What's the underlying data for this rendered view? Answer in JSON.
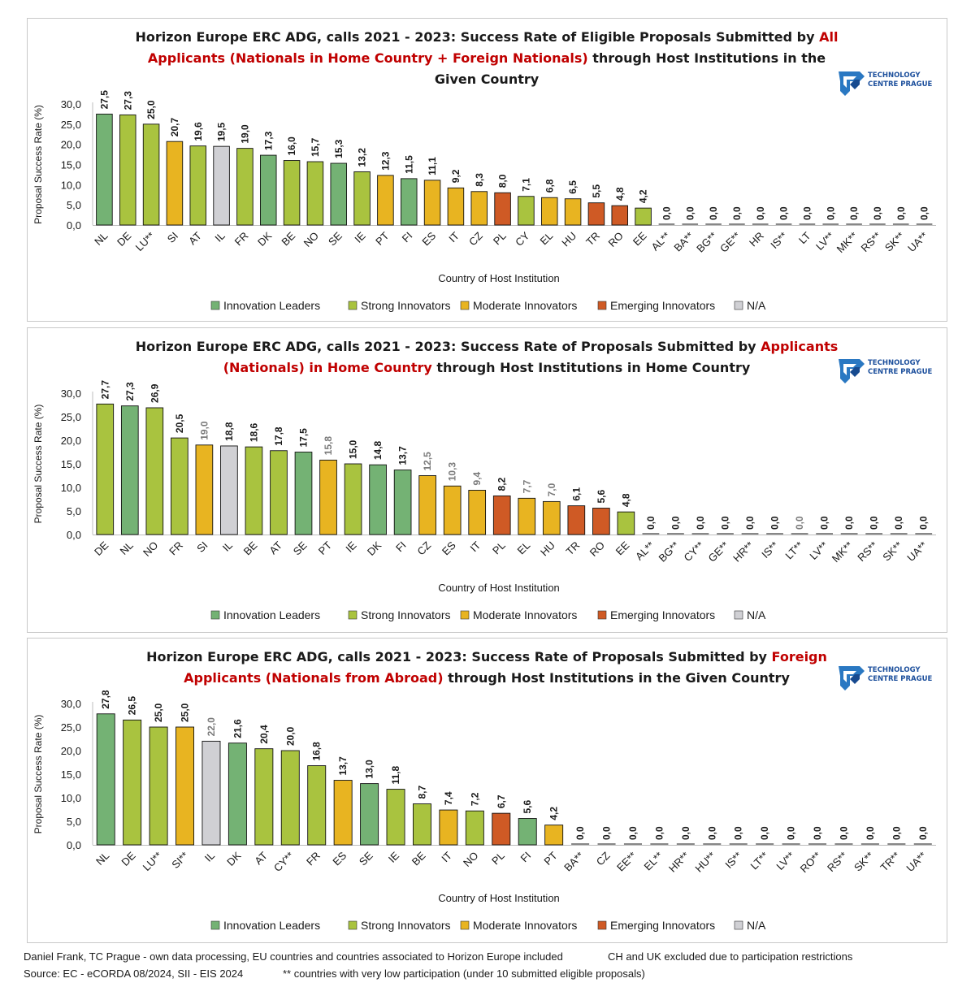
{
  "colors": {
    "Innovation Leaders": "#74b274",
    "Strong Innovators": "#a9c33f",
    "Moderate Innovators": "#e8b421",
    "Emerging Innovators": "#cf5a25",
    "N/A": "#d0d0d4"
  },
  "legend": [
    "Innovation Leaders",
    "Strong Innovators",
    "Moderate Innovators",
    "Emerging Innovators",
    "N/A"
  ],
  "logo": {
    "line1": "TECHNOLOGY",
    "line2": "CENTRE PRAGUE"
  },
  "chart_data": [
    {
      "type": "bar",
      "title": {
        "a": "Horizon Europe ERC ADG, calls 2021 - 2023: Success Rate of Eligible Proposals Submitted by ",
        "b": "All Applicants (Nationals in Home Country + Foreign Nationals)",
        "c": " through Host Institutions in the Given Country"
      },
      "xlabel": "Country of Host Institution",
      "ylabel": "Proposal Success Rate (%)",
      "ylim": [
        0,
        30
      ],
      "yticks": [
        "0,0",
        "5,0",
        "10,0",
        "15,0",
        "20,0",
        "25,0",
        "30,0"
      ],
      "categories": [
        "NL",
        "DE",
        "LU**",
        "SI",
        "AT",
        "IL",
        "FR",
        "DK",
        "BE",
        "NO",
        "SE",
        "IE",
        "PT",
        "FI",
        "ES",
        "IT",
        "CZ",
        "PL",
        "CY",
        "EL",
        "HU",
        "TR",
        "RO",
        "EE",
        "AL**",
        "BA**",
        "BG**",
        "GE**",
        "HR",
        "IS**",
        "LT",
        "LV**",
        "MK**",
        "RS**",
        "SK**",
        "UA**"
      ],
      "values": [
        27.5,
        27.3,
        25.0,
        20.7,
        19.6,
        19.5,
        19.0,
        17.3,
        16.0,
        15.7,
        15.3,
        13.2,
        12.3,
        11.5,
        11.1,
        9.2,
        8.3,
        8.0,
        7.1,
        6.8,
        6.5,
        5.5,
        4.8,
        4.2,
        0,
        0,
        0,
        0,
        0,
        0,
        0,
        0,
        0,
        0,
        0,
        0
      ],
      "labels": [
        "27,5",
        "27,3",
        "25,0",
        "20,7",
        "19,6",
        "19,5",
        "19,0",
        "17,3",
        "16,0",
        "15,7",
        "15,3",
        "13,2",
        "12,3",
        "11,5",
        "11,1",
        "9,2",
        "8,3",
        "8,0",
        "7,1",
        "6,8",
        "6,5",
        "5,5",
        "4,8",
        "4,2",
        "0,0",
        "0,0",
        "0,0",
        "0,0",
        "0,0",
        "0,0",
        "0,0",
        "0,0",
        "0,0",
        "0,0",
        "0,0",
        "0,0"
      ],
      "groups": [
        "Innovation Leaders",
        "Strong Innovators",
        "Strong Innovators",
        "Moderate Innovators",
        "Strong Innovators",
        "N/A",
        "Strong Innovators",
        "Innovation Leaders",
        "Strong Innovators",
        "Strong Innovators",
        "Innovation Leaders",
        "Strong Innovators",
        "Moderate Innovators",
        "Innovation Leaders",
        "Moderate Innovators",
        "Moderate Innovators",
        "Moderate Innovators",
        "Emerging Innovators",
        "Strong Innovators",
        "Moderate Innovators",
        "Moderate Innovators",
        "Emerging Innovators",
        "Emerging Innovators",
        "Strong Innovators",
        "N/A",
        "N/A",
        "Emerging Innovators",
        "N/A",
        "Moderate Innovators",
        "Innovation Leaders",
        "Moderate Innovators",
        "Emerging Innovators",
        "N/A",
        "N/A",
        "Emerging Innovators",
        "N/A"
      ]
    },
    {
      "type": "bar",
      "title": {
        "a": "Horizon Europe ERC ADG, calls 2021 - 2023: Success Rate of Proposals Submitted by ",
        "b": "Applicants (Nationals) in Home Country",
        "c": " through Host Institutions in Home Country"
      },
      "xlabel": "Country of Host Institution",
      "ylabel": "Proposal Success Rate (%)",
      "ylim": [
        0,
        30
      ],
      "yticks": [
        "0,0",
        "5,0",
        "10,0",
        "15,0",
        "20,0",
        "25,0",
        "30,0"
      ],
      "categories": [
        "DE",
        "NL",
        "NO",
        "FR",
        "SI",
        "IL",
        "BE",
        "AT",
        "SE",
        "PT",
        "IE",
        "DK",
        "FI",
        "CZ",
        "ES",
        "IT",
        "PL",
        "EL",
        "HU",
        "TR",
        "RO",
        "EE",
        "AL**",
        "BG**",
        "CY**",
        "GE**",
        "HR**",
        "IS**",
        "LT**",
        "LV**",
        "MK**",
        "RS**",
        "SK**",
        "UA**"
      ],
      "values": [
        27.7,
        27.3,
        26.9,
        20.5,
        19.0,
        18.8,
        18.6,
        17.8,
        17.5,
        15.8,
        15.0,
        14.8,
        13.7,
        12.5,
        10.3,
        9.4,
        8.2,
        7.7,
        7.0,
        6.1,
        5.6,
        4.8,
        0,
        0,
        0,
        0,
        0,
        0,
        0,
        0,
        0,
        0,
        0,
        0
      ],
      "labels": [
        "27,7",
        "27,3",
        "26,9",
        "20,5",
        "19,0",
        "18,8",
        "18,6",
        "17,8",
        "17,5",
        "15,8",
        "15,0",
        "14,8",
        "13,7",
        "12,5",
        "10,3",
        "9,4",
        "8,2",
        "7,7",
        "7,0",
        "6,1",
        "5,6",
        "4,8",
        "0,0",
        "0,0",
        "0,0",
        "0,0",
        "0,0",
        "0,0",
        "0,0",
        "0,0",
        "0,0",
        "0,0",
        "0,0",
        "0,0"
      ],
      "label_gray": [
        4,
        9,
        13,
        14,
        15,
        17,
        18,
        28
      ],
      "groups": [
        "Strong Innovators",
        "Innovation Leaders",
        "Strong Innovators",
        "Strong Innovators",
        "Moderate Innovators",
        "N/A",
        "Strong Innovators",
        "Strong Innovators",
        "Innovation Leaders",
        "Moderate Innovators",
        "Strong Innovators",
        "Innovation Leaders",
        "Innovation Leaders",
        "Moderate Innovators",
        "Moderate Innovators",
        "Moderate Innovators",
        "Emerging Innovators",
        "Moderate Innovators",
        "Moderate Innovators",
        "Emerging Innovators",
        "Emerging Innovators",
        "Strong Innovators",
        "N/A",
        "Emerging Innovators",
        "Strong Innovators",
        "N/A",
        "Moderate Innovators",
        "Innovation Leaders",
        "Moderate Innovators",
        "Emerging Innovators",
        "N/A",
        "N/A",
        "Emerging Innovators",
        "N/A"
      ]
    },
    {
      "type": "bar",
      "title": {
        "a": "Horizon Europe ERC ADG, calls 2021 - 2023: Success Rate of Proposals Submitted by ",
        "b": "Foreign Applicants (Nationals from Abroad)",
        "c": " through Host Institutions in the Given Country"
      },
      "xlabel": "Country of Host Institution",
      "ylabel": "Proposal Success Rate (%)",
      "ylim": [
        0,
        30
      ],
      "yticks": [
        "0,0",
        "5,0",
        "10,0",
        "15,0",
        "20,0",
        "25,0",
        "30,0"
      ],
      "categories": [
        "NL",
        "DE",
        "LU**",
        "SI**",
        "IL",
        "DK",
        "AT",
        "CY**",
        "FR",
        "ES",
        "SE",
        "IE",
        "BE",
        "IT",
        "NO",
        "PL",
        "FI",
        "PT",
        "BA**",
        "CZ",
        "EE**",
        "EL**",
        "HR**",
        "HU**",
        "IS**",
        "LT**",
        "LV**",
        "RO**",
        "RS**",
        "SK**",
        "TR**",
        "UA**"
      ],
      "values": [
        27.8,
        26.5,
        25.0,
        25.0,
        22.0,
        21.6,
        20.4,
        20.0,
        16.8,
        13.7,
        13.0,
        11.8,
        8.7,
        7.4,
        7.2,
        6.7,
        5.6,
        4.2,
        0,
        0,
        0,
        0,
        0,
        0,
        0,
        0,
        0,
        0,
        0,
        0,
        0,
        0
      ],
      "labels": [
        "27,8",
        "26,5",
        "25,0",
        "25,0",
        "22,0",
        "21,6",
        "20,4",
        "20,0",
        "16,8",
        "13,7",
        "13,0",
        "11,8",
        "8,7",
        "7,4",
        "7,2",
        "6,7",
        "5,6",
        "4,2",
        "0,0",
        "0,0",
        "0,0",
        "0,0",
        "0,0",
        "0,0",
        "0,0",
        "0,0",
        "0,0",
        "0,0",
        "0,0",
        "0,0",
        "0,0",
        "0,0"
      ],
      "label_gray": [
        4
      ],
      "groups": [
        "Innovation Leaders",
        "Strong Innovators",
        "Strong Innovators",
        "Moderate Innovators",
        "N/A",
        "Innovation Leaders",
        "Strong Innovators",
        "Strong Innovators",
        "Strong Innovators",
        "Moderate Innovators",
        "Innovation Leaders",
        "Strong Innovators",
        "Strong Innovators",
        "Moderate Innovators",
        "Strong Innovators",
        "Emerging Innovators",
        "Innovation Leaders",
        "Moderate Innovators",
        "N/A",
        "Moderate Innovators",
        "Strong Innovators",
        "Moderate Innovators",
        "Moderate Innovators",
        "Moderate Innovators",
        "Innovation Leaders",
        "Moderate Innovators",
        "Emerging Innovators",
        "Emerging Innovators",
        "N/A",
        "Emerging Innovators",
        "Emerging Innovators",
        "N/A"
      ]
    }
  ],
  "footer": {
    "left1": "Daniel Frank, TC Prague - own data processing, EU countries and countries associated to Horizon Europe included",
    "right1": "CH and UK excluded due to participation restrictions",
    "left2": "Source: EC - eCORDA 08/2024, SII - EIS 2024",
    "right2": "** countries with very low participation (under 10 submitted eligible proposals)"
  }
}
